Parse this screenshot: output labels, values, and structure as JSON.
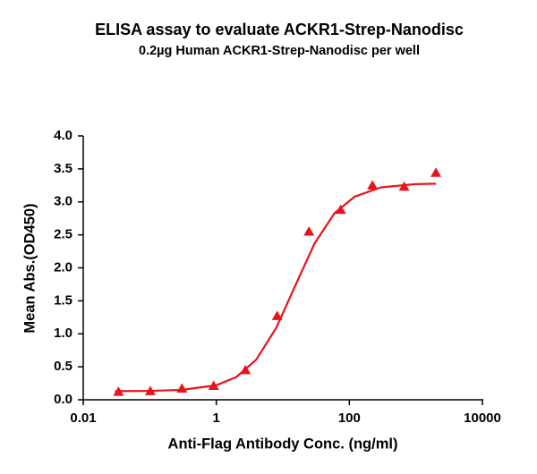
{
  "chart_data": {
    "type": "scatter",
    "title": "ELISA assay to evaluate ACKR1-Strep-Nanodisc",
    "subtitle": "0.2µg Human ACKR1-Strep-Nanodisc per well",
    "x_label": "Anti-Flag Antibody Conc. (ng/ml)",
    "y_label": "Mean Abs.(OD450)",
    "x_scale": "log",
    "xlim": [
      0.01,
      10000
    ],
    "xticks": [
      0.01,
      1,
      100,
      10000
    ],
    "ylim": [
      0,
      4
    ],
    "yticks": [
      {
        "value": 0,
        "label": "0.0"
      },
      0.5,
      {
        "value": 1,
        "label": "1.0"
      },
      1.5,
      {
        "value": 2,
        "label": "2.0"
      },
      2.5,
      {
        "value": 3,
        "label": "3.0"
      },
      3.5,
      {
        "value": 4,
        "label": "4.0"
      }
    ],
    "grid": false,
    "series": [
      {
        "color": "#e8141c",
        "marker": "triangle",
        "x": [
          0.0339,
          0.102,
          0.305,
          0.914,
          2.74,
          8.23,
          24.69,
          74.07,
          222.2,
          666.7,
          2000
        ],
        "values": [
          0.12,
          0.13,
          0.17,
          0.21,
          0.45,
          1.27,
          2.55,
          2.88,
          3.25,
          3.23,
          3.44
        ]
      },
      {
        "color": "#e8141c",
        "marker": "line",
        "x": [
          0.03,
          0.1,
          0.3,
          1,
          2,
          4,
          8,
          15,
          30,
          60,
          120,
          300,
          1000,
          2000
        ],
        "values": [
          0.131,
          0.135,
          0.149,
          0.22,
          0.344,
          0.609,
          1.095,
          1.705,
          2.37,
          2.83,
          3.08,
          3.22,
          3.27,
          3.276
        ]
      }
    ]
  }
}
